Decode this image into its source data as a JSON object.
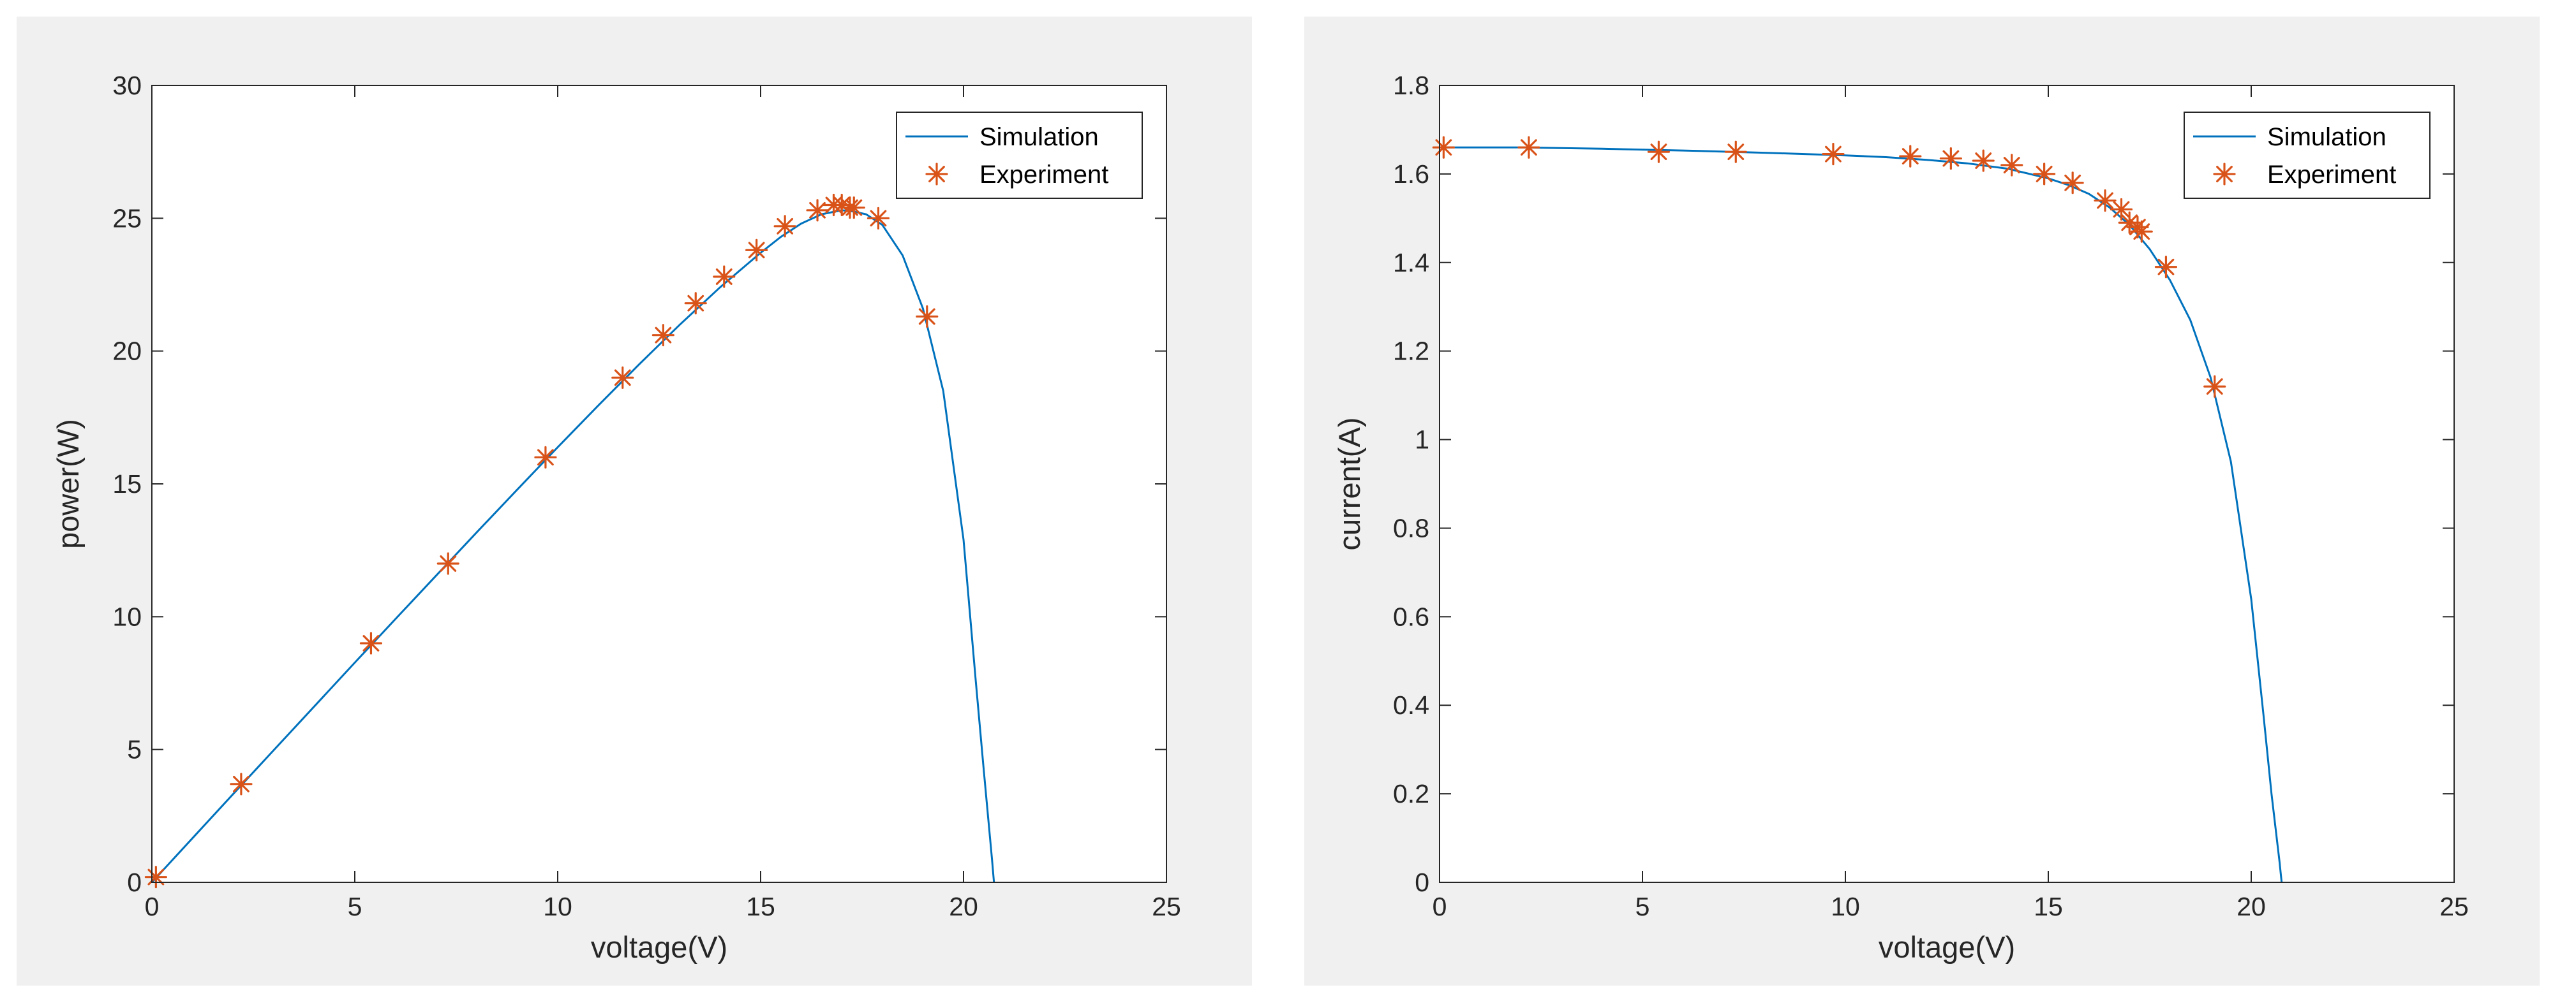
{
  "colors": {
    "figure_background": "#f0f0f0",
    "axes_background": "#ffffff",
    "axes_color": "#262626",
    "simulation_line": "#0072bd",
    "experiment_marker": "#d95319"
  },
  "chart_data": [
    {
      "type": "line",
      "xlabel": "voltage(V)",
      "ylabel": "power(W)",
      "xlim": [
        0,
        25
      ],
      "ylim": [
        0,
        30
      ],
      "xticks": [
        0,
        5,
        10,
        15,
        20,
        25
      ],
      "yticks": [
        0,
        5,
        10,
        15,
        20,
        25,
        30
      ],
      "legend_position": "top-right",
      "grid": false,
      "series": [
        {
          "name": "Simulation",
          "kind": "line",
          "x": [
            0,
            1,
            2,
            3,
            4,
            5,
            6,
            7,
            8,
            9,
            10,
            11,
            12,
            13,
            14,
            15,
            15.5,
            16,
            16.5,
            17,
            17.3,
            17.6,
            18,
            18.5,
            19,
            19.5,
            20,
            20.3,
            20.5,
            20.7,
            20.75
          ],
          "y": [
            0,
            1.66,
            3.32,
            4.97,
            6.62,
            8.27,
            9.91,
            11.54,
            13.17,
            14.78,
            16.38,
            17.95,
            19.49,
            20.98,
            22.4,
            23.7,
            24.3,
            24.8,
            25.15,
            25.3,
            25.25,
            25.15,
            24.75,
            23.6,
            21.6,
            18.5,
            12.9,
            7.6,
            4.2,
            0.9,
            0
          ]
        },
        {
          "name": "Experiment",
          "kind": "scatter",
          "x": [
            0.1,
            2.2,
            5.4,
            7.3,
            9.7,
            11.6,
            12.6,
            13.4,
            14.1,
            14.9,
            15.6,
            16.4,
            16.8,
            17.0,
            17.2,
            17.3,
            17.9,
            19.1
          ],
          "y": [
            0.2,
            3.7,
            9.0,
            12.0,
            16.0,
            19.0,
            20.6,
            21.8,
            22.8,
            23.8,
            24.7,
            25.3,
            25.5,
            25.5,
            25.4,
            25.4,
            25.0,
            21.3
          ]
        }
      ]
    },
    {
      "type": "line",
      "xlabel": "voltage(V)",
      "ylabel": "current(A)",
      "xlim": [
        0,
        25
      ],
      "ylim": [
        0,
        1.8
      ],
      "xticks": [
        0,
        5,
        10,
        15,
        20,
        25
      ],
      "yticks": [
        0,
        0.2,
        0.4,
        0.6,
        0.8,
        1,
        1.2,
        1.4,
        1.6,
        1.8
      ],
      "legend_position": "top-right",
      "grid": false,
      "series": [
        {
          "name": "Simulation",
          "kind": "line",
          "x": [
            0,
            2,
            4,
            6,
            8,
            10,
            11,
            12,
            13,
            14,
            15,
            15.5,
            16,
            16.5,
            17,
            17.5,
            18,
            18.5,
            19,
            19.5,
            20,
            20.3,
            20.5,
            20.7,
            20.75
          ],
          "y": [
            1.66,
            1.66,
            1.657,
            1.653,
            1.648,
            1.642,
            1.638,
            1.632,
            1.624,
            1.612,
            1.59,
            1.575,
            1.555,
            1.525,
            1.485,
            1.43,
            1.36,
            1.27,
            1.14,
            0.95,
            0.64,
            0.38,
            0.2,
            0.045,
            0
          ]
        },
        {
          "name": "Experiment",
          "kind": "scatter",
          "x": [
            0.1,
            2.2,
            5.4,
            7.3,
            9.7,
            11.6,
            12.6,
            13.4,
            14.1,
            14.9,
            15.6,
            16.4,
            16.8,
            17.0,
            17.2,
            17.3,
            17.9,
            19.1
          ],
          "y": [
            1.66,
            1.66,
            1.65,
            1.65,
            1.645,
            1.64,
            1.635,
            1.63,
            1.62,
            1.6,
            1.58,
            1.54,
            1.52,
            1.49,
            1.48,
            1.47,
            1.39,
            1.12
          ]
        }
      ]
    }
  ]
}
